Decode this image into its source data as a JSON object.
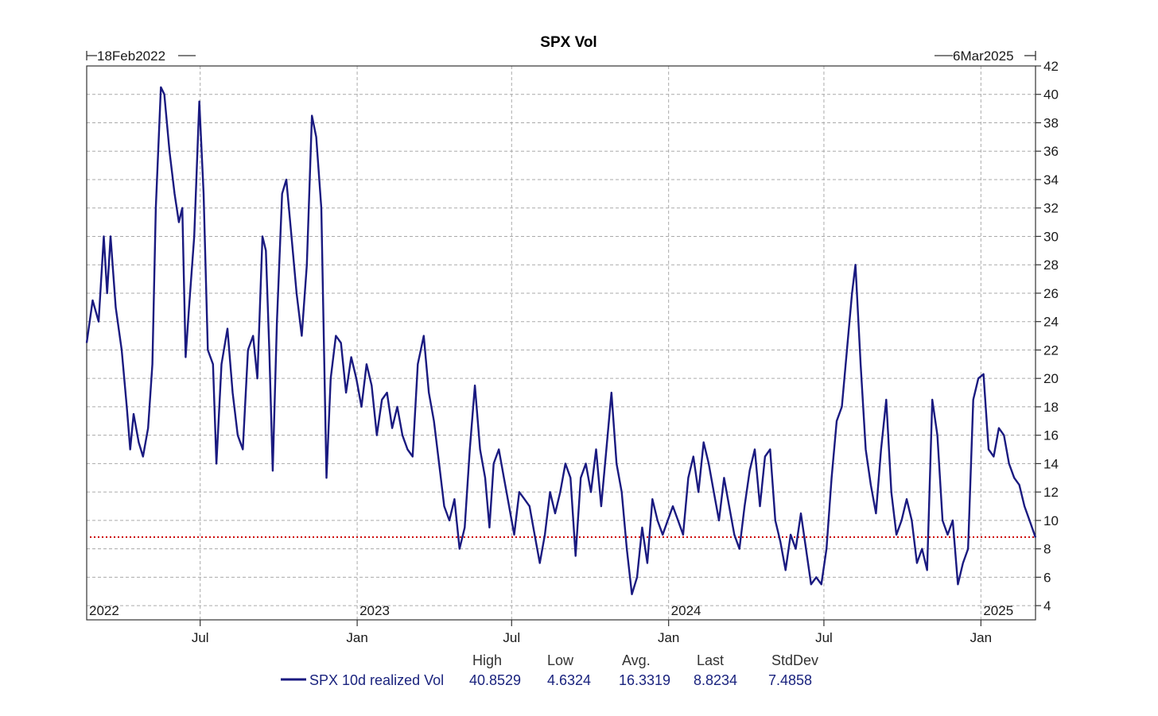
{
  "chart_data": {
    "type": "line",
    "title": "SPX Vol",
    "start_label": "18Feb2022",
    "end_label": "6Mar2025",
    "x_start": "2022-02-18",
    "x_end": "2025-03-06",
    "ylim": [
      3,
      42
    ],
    "y_ticks": [
      4,
      6,
      8,
      10,
      12,
      14,
      16,
      18,
      20,
      22,
      24,
      26,
      28,
      30,
      32,
      34,
      36,
      38,
      40,
      42
    ],
    "x_ticks": [
      {
        "date": "2022-07-01",
        "label": "Jul"
      },
      {
        "date": "2023-01-01",
        "label": "Jan"
      },
      {
        "date": "2023-07-01",
        "label": "Jul"
      },
      {
        "date": "2024-01-01",
        "label": "Jan"
      },
      {
        "date": "2024-07-01",
        "label": "Jul"
      },
      {
        "date": "2025-01-01",
        "label": "Jan"
      }
    ],
    "year_labels": [
      {
        "date": "2022-02-18",
        "label": "2022"
      },
      {
        "date": "2023-01-01",
        "label": "2023"
      },
      {
        "date": "2024-01-01",
        "label": "2024"
      },
      {
        "date": "2025-01-01",
        "label": "2025"
      }
    ],
    "grid": true,
    "reference_line": 8.8234,
    "series": [
      {
        "name": "SPX 10d realized Vol",
        "color": "#1a1a80",
        "points": [
          [
            "2022-02-18",
            22.5
          ],
          [
            "2022-02-25",
            25.5
          ],
          [
            "2022-03-04",
            24
          ],
          [
            "2022-03-10",
            30
          ],
          [
            "2022-03-14",
            26
          ],
          [
            "2022-03-18",
            30
          ],
          [
            "2022-03-24",
            25
          ],
          [
            "2022-03-31",
            22
          ],
          [
            "2022-04-06",
            18
          ],
          [
            "2022-04-10",
            15
          ],
          [
            "2022-04-14",
            17.5
          ],
          [
            "2022-04-20",
            15.5
          ],
          [
            "2022-04-25",
            14.5
          ],
          [
            "2022-05-01",
            16.5
          ],
          [
            "2022-05-06",
            21
          ],
          [
            "2022-05-10",
            32
          ],
          [
            "2022-05-16",
            40.5
          ],
          [
            "2022-05-20",
            40
          ],
          [
            "2022-05-26",
            36
          ],
          [
            "2022-06-01",
            33
          ],
          [
            "2022-06-06",
            31
          ],
          [
            "2022-06-10",
            32
          ],
          [
            "2022-06-14",
            21.5
          ],
          [
            "2022-06-18",
            25
          ],
          [
            "2022-06-24",
            30
          ],
          [
            "2022-06-30",
            39.5
          ],
          [
            "2022-07-05",
            33
          ],
          [
            "2022-07-10",
            22
          ],
          [
            "2022-07-16",
            21
          ],
          [
            "2022-07-20",
            14
          ],
          [
            "2022-07-26",
            21
          ],
          [
            "2022-08-02",
            23.5
          ],
          [
            "2022-08-08",
            19
          ],
          [
            "2022-08-14",
            16
          ],
          [
            "2022-08-20",
            15
          ],
          [
            "2022-08-26",
            22
          ],
          [
            "2022-09-01",
            23
          ],
          [
            "2022-09-06",
            20
          ],
          [
            "2022-09-12",
            30
          ],
          [
            "2022-09-16",
            29
          ],
          [
            "2022-09-20",
            22
          ],
          [
            "2022-09-24",
            13.5
          ],
          [
            "2022-09-29",
            24
          ],
          [
            "2022-10-05",
            33
          ],
          [
            "2022-10-10",
            34
          ],
          [
            "2022-10-16",
            30
          ],
          [
            "2022-10-22",
            26
          ],
          [
            "2022-10-28",
            23
          ],
          [
            "2022-11-03",
            28
          ],
          [
            "2022-11-09",
            38.5
          ],
          [
            "2022-11-14",
            37
          ],
          [
            "2022-11-20",
            32
          ],
          [
            "2022-11-26",
            13
          ],
          [
            "2022-12-01",
            20
          ],
          [
            "2022-12-07",
            23
          ],
          [
            "2022-12-13",
            22.5
          ],
          [
            "2022-12-19",
            19
          ],
          [
            "2022-12-25",
            21.5
          ],
          [
            "2022-12-31",
            20
          ],
          [
            "2023-01-06",
            18
          ],
          [
            "2023-01-12",
            21
          ],
          [
            "2023-01-18",
            19.5
          ],
          [
            "2023-01-24",
            16
          ],
          [
            "2023-01-30",
            18.5
          ],
          [
            "2023-02-05",
            19
          ],
          [
            "2023-02-11",
            16.5
          ],
          [
            "2023-02-17",
            18
          ],
          [
            "2023-02-23",
            16
          ],
          [
            "2023-03-01",
            15
          ],
          [
            "2023-03-07",
            14.5
          ],
          [
            "2023-03-13",
            21
          ],
          [
            "2023-03-20",
            23
          ],
          [
            "2023-03-26",
            19
          ],
          [
            "2023-04-01",
            17
          ],
          [
            "2023-04-07",
            14
          ],
          [
            "2023-04-13",
            11
          ],
          [
            "2023-04-19",
            10
          ],
          [
            "2023-04-25",
            11.5
          ],
          [
            "2023-05-01",
            8
          ],
          [
            "2023-05-07",
            9.5
          ],
          [
            "2023-05-13",
            15
          ],
          [
            "2023-05-19",
            19.5
          ],
          [
            "2023-05-25",
            15
          ],
          [
            "2023-05-31",
            13
          ],
          [
            "2023-06-05",
            9.5
          ],
          [
            "2023-06-10",
            14
          ],
          [
            "2023-06-16",
            15
          ],
          [
            "2023-06-22",
            13
          ],
          [
            "2023-06-28",
            11
          ],
          [
            "2023-07-04",
            9
          ],
          [
            "2023-07-10",
            12
          ],
          [
            "2023-07-16",
            11.5
          ],
          [
            "2023-07-22",
            11
          ],
          [
            "2023-07-28",
            9
          ],
          [
            "2023-08-03",
            7
          ],
          [
            "2023-08-09",
            9
          ],
          [
            "2023-08-15",
            12
          ],
          [
            "2023-08-21",
            10.5
          ],
          [
            "2023-08-27",
            12
          ],
          [
            "2023-09-02",
            14
          ],
          [
            "2023-09-08",
            13
          ],
          [
            "2023-09-14",
            7.5
          ],
          [
            "2023-09-20",
            13
          ],
          [
            "2023-09-26",
            14
          ],
          [
            "2023-10-02",
            12
          ],
          [
            "2023-10-08",
            15
          ],
          [
            "2023-10-14",
            11
          ],
          [
            "2023-10-20",
            15
          ],
          [
            "2023-10-26",
            19
          ],
          [
            "2023-11-01",
            14
          ],
          [
            "2023-11-07",
            12
          ],
          [
            "2023-11-13",
            8
          ],
          [
            "2023-11-19",
            4.8
          ],
          [
            "2023-11-25",
            6
          ],
          [
            "2023-12-01",
            9.5
          ],
          [
            "2023-12-07",
            7
          ],
          [
            "2023-12-13",
            11.5
          ],
          [
            "2023-12-19",
            10
          ],
          [
            "2023-12-25",
            9
          ],
          [
            "2023-12-31",
            10
          ],
          [
            "2024-01-06",
            11
          ],
          [
            "2024-01-12",
            10
          ],
          [
            "2024-01-18",
            9
          ],
          [
            "2024-01-24",
            13
          ],
          [
            "2024-01-30",
            14.5
          ],
          [
            "2024-02-05",
            12
          ],
          [
            "2024-02-11",
            15.5
          ],
          [
            "2024-02-17",
            14
          ],
          [
            "2024-02-23",
            12
          ],
          [
            "2024-02-29",
            10
          ],
          [
            "2024-03-06",
            13
          ],
          [
            "2024-03-12",
            11
          ],
          [
            "2024-03-18",
            9
          ],
          [
            "2024-03-24",
            8
          ],
          [
            "2024-03-30",
            11
          ],
          [
            "2024-04-05",
            13.5
          ],
          [
            "2024-04-11",
            15
          ],
          [
            "2024-04-17",
            11
          ],
          [
            "2024-04-23",
            14.5
          ],
          [
            "2024-04-29",
            15
          ],
          [
            "2024-05-05",
            10
          ],
          [
            "2024-05-11",
            8.5
          ],
          [
            "2024-05-17",
            6.5
          ],
          [
            "2024-05-23",
            9
          ],
          [
            "2024-05-29",
            8
          ],
          [
            "2024-06-04",
            10.5
          ],
          [
            "2024-06-10",
            8
          ],
          [
            "2024-06-16",
            5.5
          ],
          [
            "2024-06-22",
            6
          ],
          [
            "2024-06-28",
            5.5
          ],
          [
            "2024-07-04",
            8
          ],
          [
            "2024-07-10",
            13
          ],
          [
            "2024-07-16",
            17
          ],
          [
            "2024-07-22",
            18
          ],
          [
            "2024-07-28",
            22
          ],
          [
            "2024-08-03",
            26
          ],
          [
            "2024-08-07",
            28
          ],
          [
            "2024-08-13",
            21
          ],
          [
            "2024-08-19",
            15
          ],
          [
            "2024-08-25",
            12.5
          ],
          [
            "2024-08-31",
            10.5
          ],
          [
            "2024-09-06",
            15
          ],
          [
            "2024-09-12",
            18.5
          ],
          [
            "2024-09-18",
            12
          ],
          [
            "2024-09-24",
            9
          ],
          [
            "2024-09-30",
            10
          ],
          [
            "2024-10-06",
            11.5
          ],
          [
            "2024-10-12",
            10
          ],
          [
            "2024-10-18",
            7
          ],
          [
            "2024-10-24",
            8
          ],
          [
            "2024-10-30",
            6.5
          ],
          [
            "2024-11-05",
            18.5
          ],
          [
            "2024-11-11",
            16
          ],
          [
            "2024-11-17",
            10
          ],
          [
            "2024-11-23",
            9
          ],
          [
            "2024-11-29",
            10
          ],
          [
            "2024-12-05",
            5.5
          ],
          [
            "2024-12-11",
            7
          ],
          [
            "2024-12-17",
            8
          ],
          [
            "2024-12-23",
            18.5
          ],
          [
            "2024-12-29",
            20
          ],
          [
            "2025-01-04",
            20.3
          ],
          [
            "2025-01-10",
            15
          ],
          [
            "2025-01-16",
            14.5
          ],
          [
            "2025-01-22",
            16.5
          ],
          [
            "2025-01-28",
            16
          ],
          [
            "2025-02-03",
            14
          ],
          [
            "2025-02-09",
            13
          ],
          [
            "2025-02-15",
            12.5
          ],
          [
            "2025-02-21",
            11
          ],
          [
            "2025-02-27",
            10
          ],
          [
            "2025-03-06",
            8.8
          ]
        ]
      }
    ],
    "stats": {
      "headers": [
        "High",
        "Low",
        "Avg.",
        "Last",
        "StdDev"
      ],
      "values": [
        "40.8529",
        "4.6324",
        "16.3319",
        "8.8234",
        "7.4858"
      ]
    },
    "legend": {
      "position": "bottom",
      "label": "SPX 10d realized Vol"
    },
    "colors": {
      "series": "#1a1a80",
      "reference": "#cc0000",
      "grid": "#aaaaaa"
    }
  }
}
